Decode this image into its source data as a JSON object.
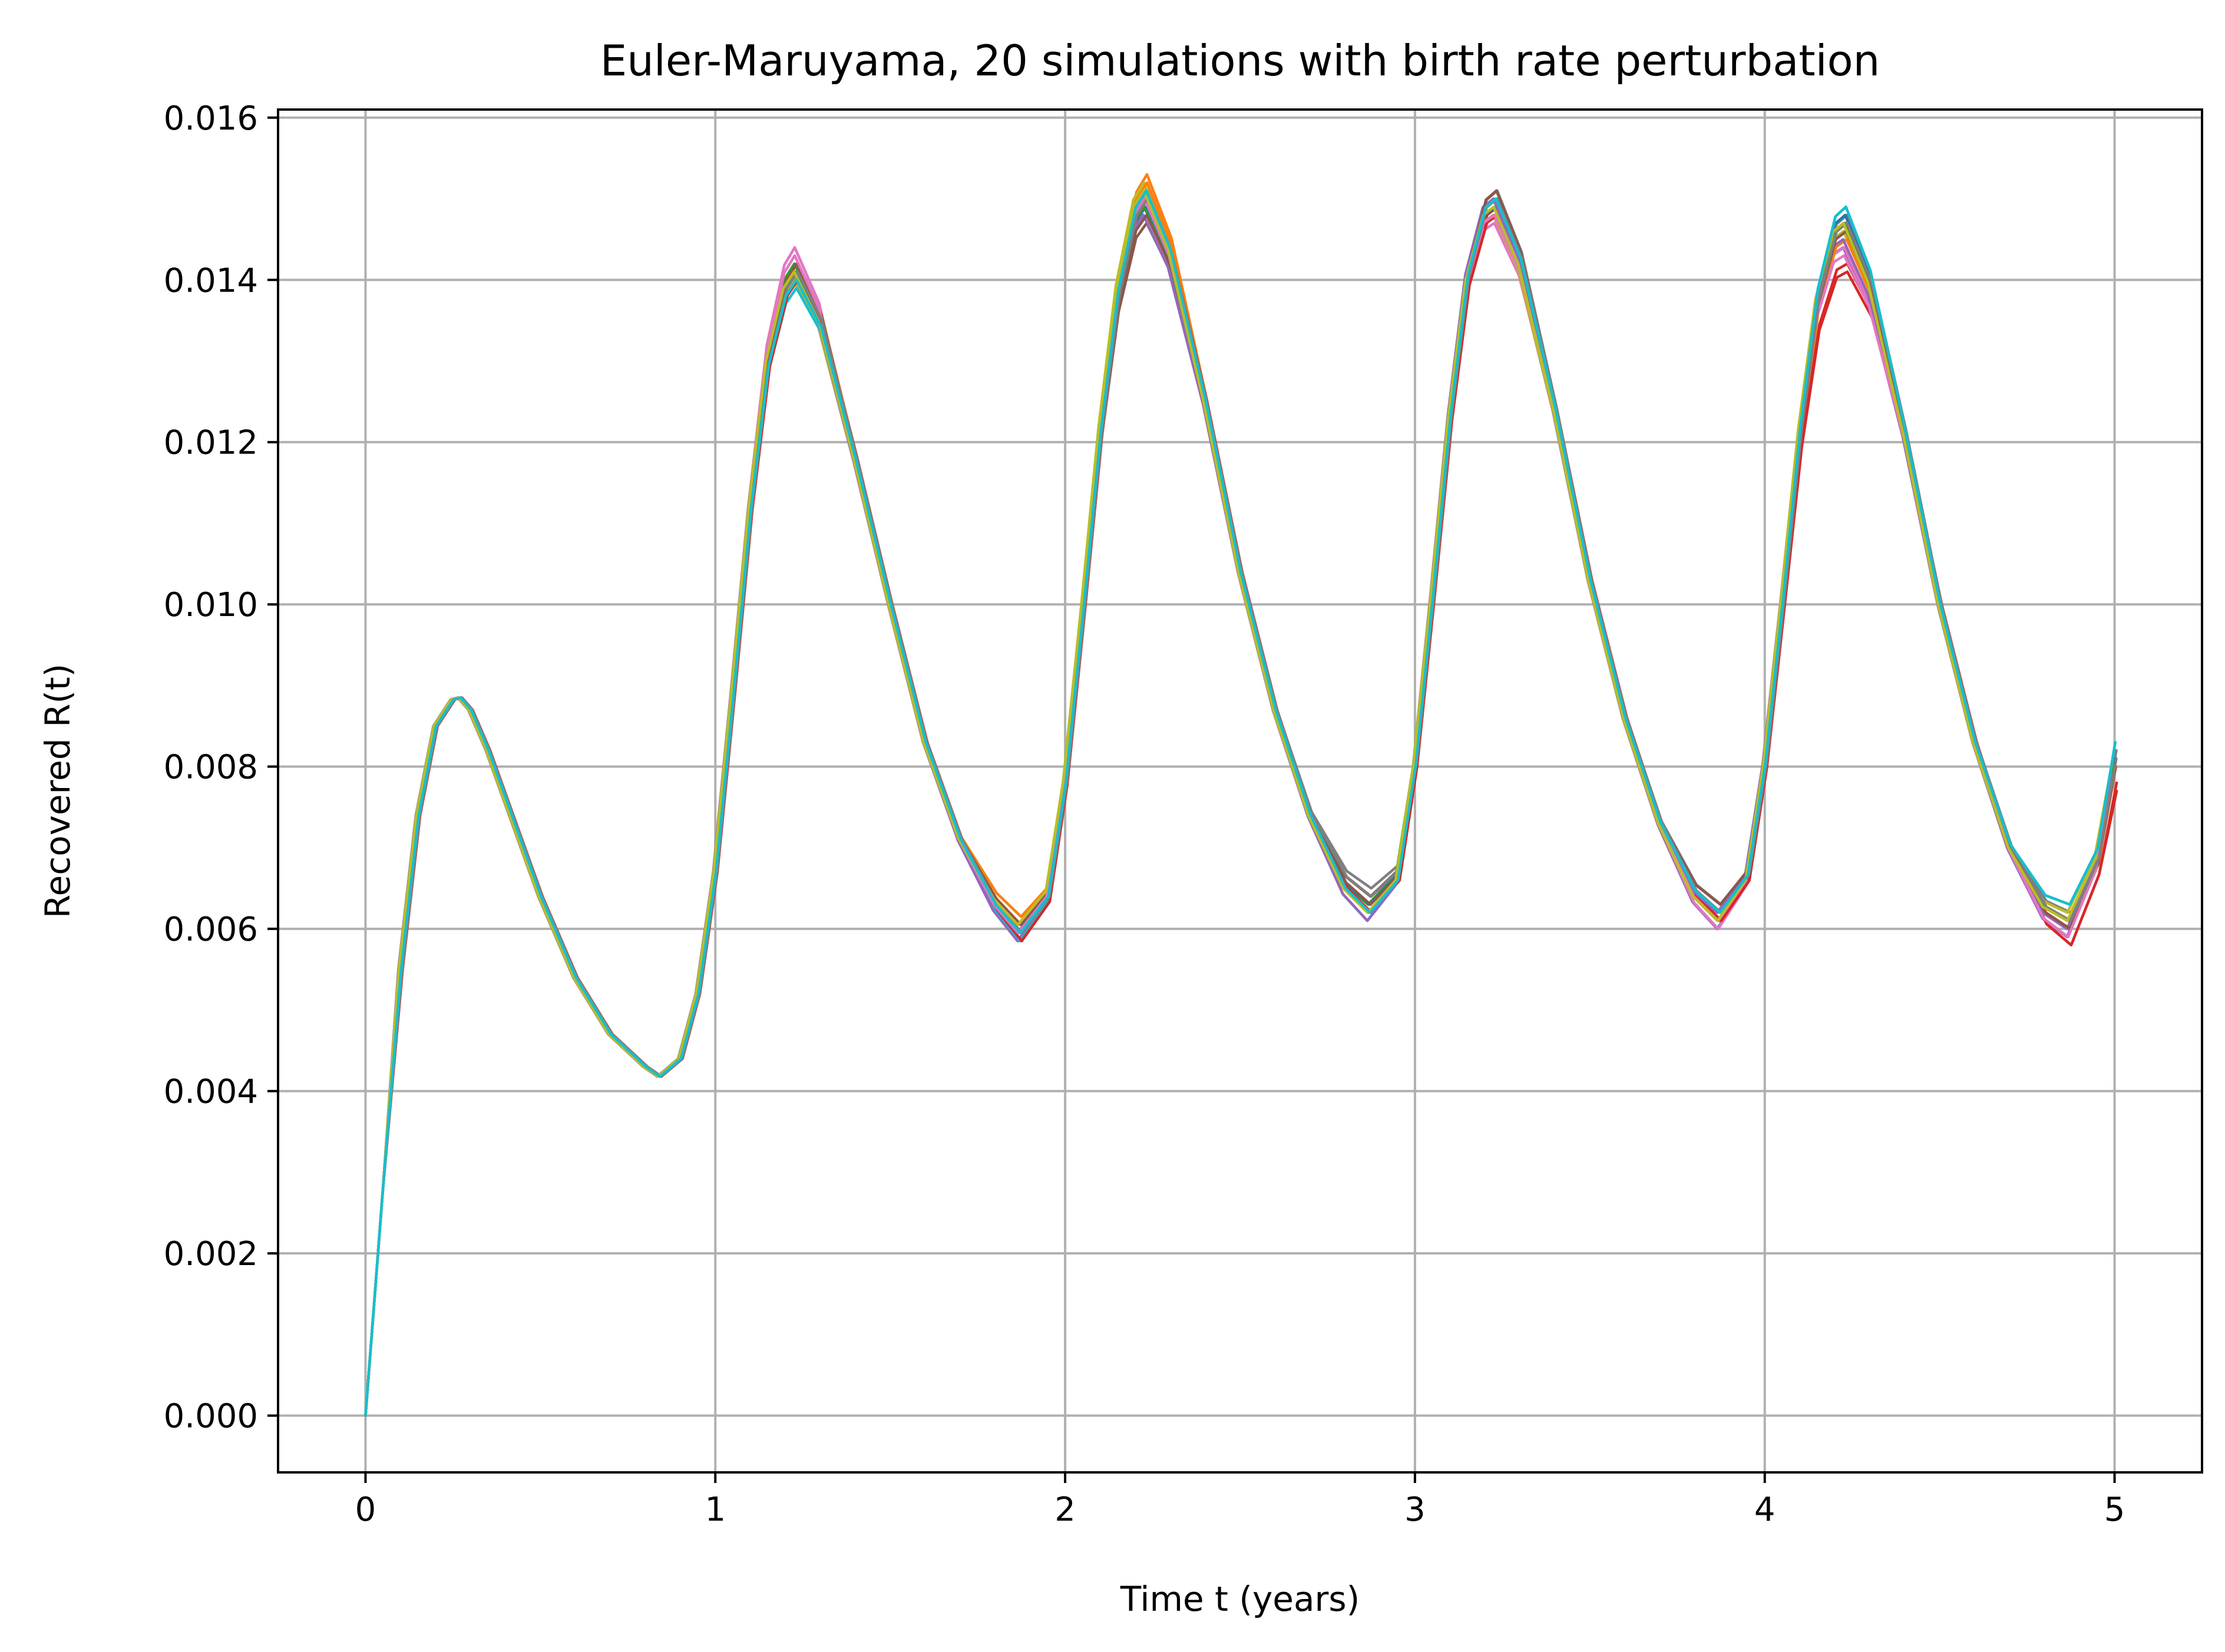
{
  "chart_data": {
    "type": "line",
    "title": "Euler-Maruyama, 20 simulations  with birth rate perturbation",
    "xlabel": "Time t (years)",
    "ylabel": "Recovered R(t)",
    "xlim": [
      -0.25,
      5.25
    ],
    "ylim": [
      -0.0007,
      0.0161
    ],
    "xticks": [
      0,
      1,
      2,
      3,
      4,
      5
    ],
    "xtick_labels": [
      "0",
      "1",
      "2",
      "3",
      "4",
      "5"
    ],
    "yticks": [
      0.0,
      0.002,
      0.004,
      0.006,
      0.008,
      0.01,
      0.012,
      0.014,
      0.016
    ],
    "ytick_labels": [
      "0.000",
      "0.002",
      "0.004",
      "0.006",
      "0.008",
      "0.010",
      "0.012",
      "0.014",
      "0.016"
    ],
    "grid": true,
    "legend": "none",
    "base_curve": {
      "x": [
        0,
        0.05,
        0.1,
        0.15,
        0.2,
        0.25,
        0.27,
        0.3,
        0.35,
        0.4,
        0.5,
        0.6,
        0.7,
        0.8,
        0.84,
        0.9,
        0.95,
        1.0,
        1.05,
        1.1,
        1.15,
        1.2,
        1.23,
        1.3,
        1.4,
        1.5,
        1.6,
        1.7,
        1.8,
        1.87,
        1.95,
        2.0,
        2.05,
        2.1,
        2.15,
        2.2,
        2.23,
        2.3,
        2.4,
        2.5,
        2.6,
        2.7,
        2.8,
        2.87,
        2.95,
        3.0,
        3.05,
        3.1,
        3.15,
        3.2,
        3.23,
        3.3,
        3.4,
        3.5,
        3.6,
        3.7,
        3.8,
        3.87,
        3.95,
        4.0,
        4.05,
        4.1,
        4.15,
        4.2,
        4.23,
        4.3,
        4.4,
        4.5,
        4.6,
        4.7,
        4.8,
        4.87,
        4.95,
        5.0
      ],
      "y": [
        0.0,
        0.0028,
        0.0055,
        0.0074,
        0.0085,
        0.00883,
        0.00885,
        0.0087,
        0.0082,
        0.0076,
        0.0064,
        0.0054,
        0.0047,
        0.0043,
        0.00418,
        0.0044,
        0.0052,
        0.0067,
        0.0089,
        0.0112,
        0.013,
        0.0139,
        0.0141,
        0.0135,
        0.0118,
        0.01,
        0.0083,
        0.0071,
        0.0063,
        0.00595,
        0.0064,
        0.0078,
        0.0099,
        0.0121,
        0.0138,
        0.0148,
        0.015,
        0.0143,
        0.0125,
        0.0104,
        0.0087,
        0.0074,
        0.0065,
        0.0062,
        0.0066,
        0.008,
        0.0101,
        0.0123,
        0.014,
        0.0148,
        0.0149,
        0.0142,
        0.0124,
        0.0103,
        0.0086,
        0.0073,
        0.0064,
        0.0061,
        0.0066,
        0.008,
        0.01,
        0.0121,
        0.0137,
        0.0145,
        0.0146,
        0.0139,
        0.0121,
        0.01,
        0.0083,
        0.007,
        0.0062,
        0.006,
        0.0068,
        0.0081
      ]
    },
    "series": [
      {
        "color": "#1f77b4",
        "peak_offsets": [
          0.0,
          -0.0001,
          0.0,
          0.0,
          0.0001
        ],
        "trough_offsets": [
          0.0,
          -0.0001,
          0.0001,
          0.0,
          0.0001
        ],
        "end": 0.008
      },
      {
        "color": "#ff7f0e",
        "peak_offsets": [
          0.0,
          0.0,
          0.0003,
          0.0,
          -0.0001
        ],
        "trough_offsets": [
          0.0,
          0.0002,
          0.0,
          0.0,
          0.0
        ],
        "end": 0.0081
      },
      {
        "color": "#2ca02c",
        "peak_offsets": [
          0.0,
          0.0001,
          0.0001,
          0.0001,
          0.0
        ],
        "trough_offsets": [
          0.0,
          0.0001,
          0.0001,
          0.0001,
          0.0
        ],
        "end": 0.008
      },
      {
        "color": "#d62728",
        "peak_offsets": [
          0.0,
          0.0,
          0.0,
          0.0,
          -0.0005
        ],
        "trough_offsets": [
          0.0,
          0.0,
          0.0,
          0.0,
          -0.0002
        ],
        "end": 0.0077
      },
      {
        "color": "#9467bd",
        "peak_offsets": [
          0.0,
          -0.0001,
          -0.0002,
          -0.0001,
          -0.0002
        ],
        "trough_offsets": [
          0.0,
          -0.0001,
          -0.0001,
          -0.0001,
          -0.0001
        ],
        "end": 0.0079
      },
      {
        "color": "#8c564b",
        "peak_offsets": [
          0.0,
          0.0001,
          -0.0003,
          0.0002,
          0.0001
        ],
        "trough_offsets": [
          0.0,
          0.0,
          0.0002,
          0.0002,
          0.0001
        ],
        "end": 0.008
      },
      {
        "color": "#e377c2",
        "peak_offsets": [
          0.0,
          0.0003,
          0.0001,
          -0.0002,
          -0.0002
        ],
        "trough_offsets": [
          0.0,
          0.0,
          0.0,
          -0.0001,
          -0.0001
        ],
        "end": 0.0079
      },
      {
        "color": "#7f7f7f",
        "peak_offsets": [
          0.0,
          0.0,
          0.0001,
          0.0002,
          0.0002
        ],
        "trough_offsets": [
          0.0,
          0.0,
          0.0003,
          0.0002,
          0.0002
        ],
        "end": 0.0082
      },
      {
        "color": "#bcbd22",
        "peak_offsets": [
          0.0,
          -0.0001,
          0.0002,
          -0.0001,
          0.0
        ],
        "trough_offsets": [
          0.0,
          0.0001,
          0.0,
          0.0,
          0.0002
        ],
        "end": 0.0081
      },
      {
        "color": "#17becf",
        "peak_offsets": [
          0.0,
          -0.0002,
          0.0001,
          0.0001,
          0.0003
        ],
        "trough_offsets": [
          0.0,
          -0.0001,
          0.0,
          0.0001,
          0.0003
        ],
        "end": 0.0083
      },
      {
        "color": "#1f77b4",
        "peak_offsets": [
          0.0,
          0.0,
          -0.0001,
          0.0,
          0.0002
        ],
        "trough_offsets": [
          0.0,
          0.0,
          0.0001,
          0.0,
          0.0001
        ],
        "end": 0.0081
      },
      {
        "color": "#ff7f0e",
        "peak_offsets": [
          0.0,
          0.0001,
          0.0002,
          0.0001,
          -0.0001
        ],
        "trough_offsets": [
          0.0,
          0.0001,
          0.0,
          0.0001,
          0.0
        ],
        "end": 0.008
      },
      {
        "color": "#2ca02c",
        "peak_offsets": [
          0.0,
          0.0,
          -0.0001,
          0.0,
          0.0001
        ],
        "trough_offsets": [
          0.0,
          0.0,
          0.0,
          0.0,
          0.0001
        ],
        "end": 0.008
      },
      {
        "color": "#d62728",
        "peak_offsets": [
          0.0,
          -0.0001,
          0.0,
          -0.0001,
          -0.0004
        ],
        "trough_offsets": [
          0.0,
          -0.0001,
          0.0,
          0.0,
          -0.0002
        ],
        "end": 0.0078
      },
      {
        "color": "#9467bd",
        "peak_offsets": [
          0.0,
          0.0,
          -0.0002,
          0.0001,
          -0.0001
        ],
        "trough_offsets": [
          0.0,
          0.0,
          -0.0001,
          0.0001,
          0.0
        ],
        "end": 0.0079
      },
      {
        "color": "#8c564b",
        "peak_offsets": [
          0.0,
          0.0001,
          -0.0002,
          0.0002,
          0.0
        ],
        "trough_offsets": [
          0.0,
          0.0001,
          0.0001,
          0.0002,
          0.0
        ],
        "end": 0.008
      },
      {
        "color": "#e377c2",
        "peak_offsets": [
          0.0,
          0.0002,
          0.0,
          -0.0001,
          -0.0003
        ],
        "trough_offsets": [
          0.0,
          0.0,
          0.0,
          0.0,
          -0.0001
        ],
        "end": 0.0079
      },
      {
        "color": "#7f7f7f",
        "peak_offsets": [
          0.0,
          0.0,
          0.0,
          0.0001,
          0.0001
        ],
        "trough_offsets": [
          0.0,
          0.0,
          0.0002,
          0.0001,
          0.0001
        ],
        "end": 0.0081
      },
      {
        "color": "#bcbd22",
        "peak_offsets": [
          0.0,
          0.0,
          0.0001,
          0.0,
          0.0001
        ],
        "trough_offsets": [
          0.0,
          0.0001,
          0.0,
          0.0,
          0.0001
        ],
        "end": 0.0081
      },
      {
        "color": "#17becf",
        "peak_offsets": [
          0.0,
          -0.0001,
          0.0001,
          0.0001,
          0.0003
        ],
        "trough_offsets": [
          0.0,
          0.0,
          0.0,
          0.0001,
          0.0003
        ],
        "end": 0.0083
      }
    ]
  }
}
